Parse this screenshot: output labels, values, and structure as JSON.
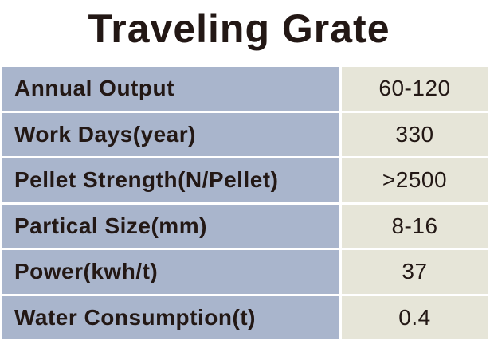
{
  "title": "Traveling Grate",
  "rows": [
    {
      "label": "Annual Output",
      "value": "60-120"
    },
    {
      "label": "Work Days(year)",
      "value": "330"
    },
    {
      "label": "Pellet Strength(N/Pellet)",
      "value": ">2500"
    },
    {
      "label": "Partical Size(mm)",
      "value": "8-16"
    },
    {
      "label": "Power(kwh/t)",
      "value": "37"
    },
    {
      "label": "Water Consumption(t)",
      "value": "0.4"
    }
  ],
  "colors": {
    "label_bg": "#a9b5cc",
    "value_bg": "#e6e5d8",
    "text": "#231815"
  }
}
